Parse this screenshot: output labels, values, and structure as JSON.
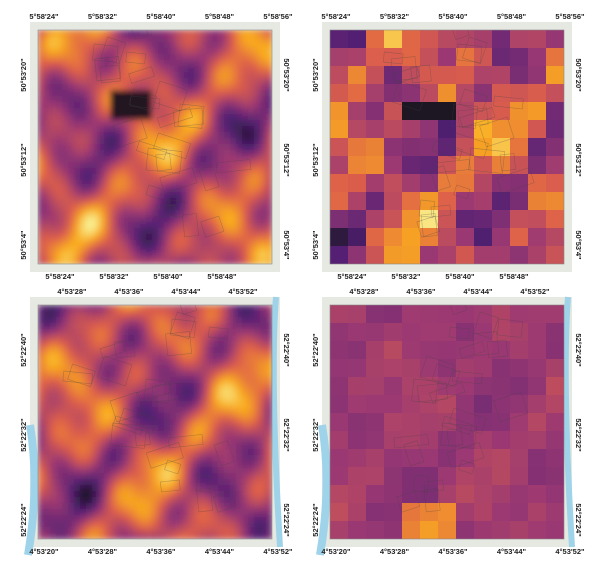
{
  "panels": [
    {
      "top": [
        "5°58'24\"",
        "5°58'32\"",
        "5°58'40\"",
        "5°58'48\"",
        "5°58'56\""
      ],
      "bottom": [
        "5°58'24\"",
        "5°58'32\"",
        "5°58'40\"",
        "5°58'48\""
      ],
      "left": [
        "50°53'20\"",
        "50°53'12\"",
        "50°53'4\""
      ],
      "right": [
        "50°53'20\"",
        "50°53'12\"",
        "50°53'4\""
      ]
    },
    {
      "top": [
        "5°58'24\"",
        "5°58'32\"",
        "5°58'40\"",
        "5°58'48\"",
        "5°58'56\""
      ],
      "bottom": [
        "5°58'24\"",
        "5°58'32\"",
        "5°58'40\"",
        "5°58'48\""
      ],
      "left": [
        "50°53'20\"",
        "50°53'12\"",
        "50°53'4\""
      ],
      "right": [
        "50°53'20\"",
        "50°53'12\"",
        "50°53'4\""
      ]
    },
    {
      "top": [
        "4°53'28\"",
        "4°53'36\"",
        "4°53'44\"",
        "4°53'52\""
      ],
      "bottom": [
        "4°53'20\"",
        "4°53'28\"",
        "4°53'36\"",
        "4°53'44\"",
        "4°53'52\""
      ],
      "left": [
        "52°22'40\"",
        "52°22'32\"",
        "52°22'24\""
      ],
      "right": [
        "52°22'40\"",
        "52°22'32\"",
        "52°22'24\""
      ]
    },
    {
      "top": [
        "4°53'28\"",
        "4°53'36\"",
        "4°53'44\"",
        "4°53'52\""
      ],
      "bottom": [
        "4°53'20\"",
        "4°53'28\"",
        "4°53'36\"",
        "4°53'44\"",
        "4°53'52\""
      ],
      "left": [
        "52°22'40\"",
        "52°22'32\"",
        "52°22'24\""
      ],
      "right": [
        "52°22'40\"",
        "52°22'32\"",
        "52°22'24\""
      ]
    }
  ]
}
